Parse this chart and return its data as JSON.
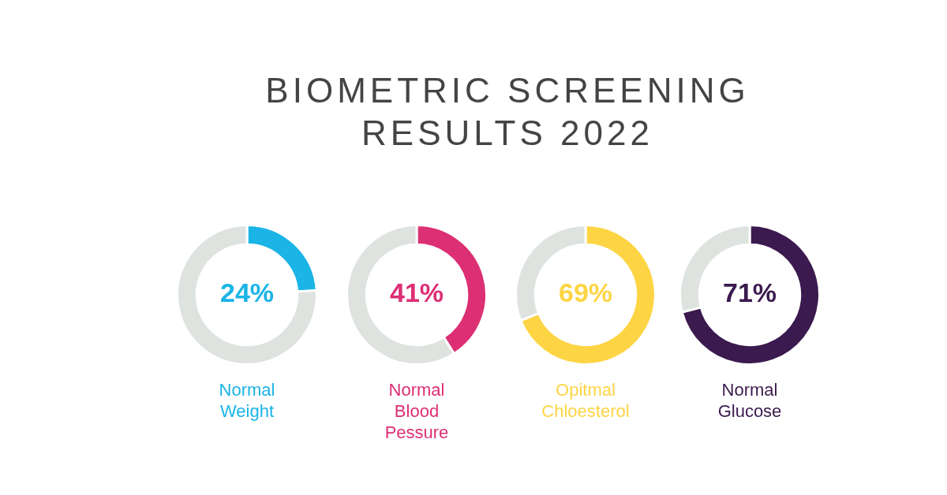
{
  "chart_data": [
    {
      "type": "other",
      "title": "BIOMETRIC SCREENING\nRESULTS 2022"
    },
    {
      "type": "donut",
      "title": "Normal\nWeight",
      "categories": [
        null,
        null
      ],
      "values": [
        24,
        76
      ],
      "colors": [
        "#1ab4e6",
        "#dfe3df"
      ],
      "value_labels": [
        "24%",
        null
      ]
    },
    {
      "type": "donut",
      "title": "Normal\nBlood\nPessure",
      "categories": [
        null,
        null
      ],
      "values": [
        41,
        59
      ],
      "colors": [
        "#dc2f74",
        "#dfe3df"
      ],
      "value_labels": [
        "41%",
        null
      ]
    },
    {
      "type": "donut",
      "title": "Opitmal\nChloesterol",
      "categories": [
        null,
        null
      ],
      "values": [
        69,
        31
      ],
      "colors": [
        "#fdd544",
        "#dfe3df"
      ],
      "value_labels": [
        "69%",
        null
      ]
    },
    {
      "type": "donut",
      "title": "Normal\nGlucose",
      "categories": [
        null,
        null
      ],
      "values": [
        71,
        29
      ],
      "colors": [
        "#3b1a4f",
        "#dfe3df"
      ],
      "value_labels": [
        "71%",
        null
      ]
    }
  ]
}
